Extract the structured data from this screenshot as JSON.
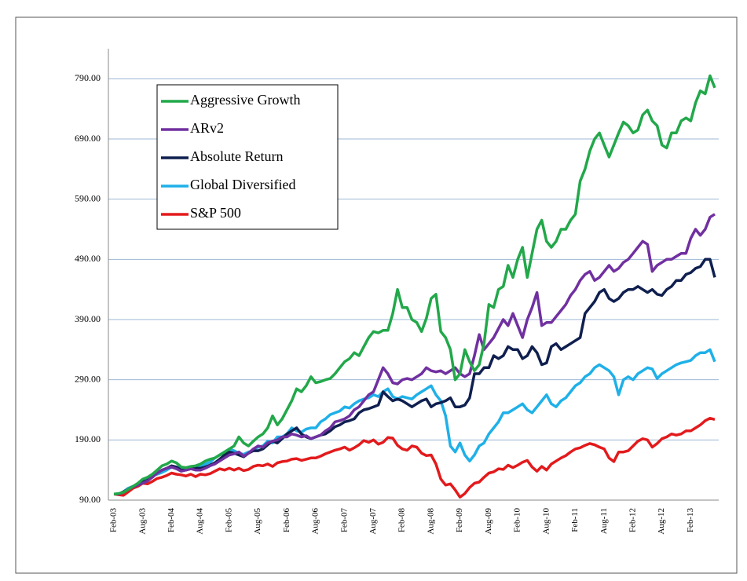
{
  "chart_data": {
    "type": "line",
    "categories": [
      "Feb-03",
      null,
      null,
      null,
      null,
      null,
      "Aug-03",
      null,
      null,
      null,
      null,
      null,
      "Feb-04",
      null,
      null,
      null,
      null,
      null,
      "Aug-04",
      null,
      null,
      null,
      null,
      null,
      "Feb-05",
      null,
      null,
      null,
      null,
      null,
      "Aug-05",
      null,
      null,
      null,
      null,
      null,
      "Feb-06",
      null,
      null,
      null,
      null,
      null,
      "Aug-06",
      null,
      null,
      null,
      null,
      null,
      "Feb-07",
      null,
      null,
      null,
      null,
      null,
      "Aug-07",
      null,
      null,
      null,
      null,
      null,
      "Feb-08",
      null,
      null,
      null,
      null,
      null,
      "Aug-08",
      null,
      null,
      null,
      null,
      null,
      "Feb-09",
      null,
      null,
      null,
      null,
      null,
      "Aug-09",
      null,
      null,
      null,
      null,
      null,
      "Feb-10",
      null,
      null,
      null,
      null,
      null,
      "Aug-10",
      null,
      null,
      null,
      null,
      null,
      "Feb-11",
      null,
      null,
      null,
      null,
      null,
      "Aug-11",
      null,
      null,
      null,
      null,
      null,
      "Feb-12",
      null,
      null,
      null,
      null,
      null,
      "Aug-12",
      null,
      null,
      null,
      null,
      null,
      "Feb-13",
      null,
      null,
      null,
      null,
      null
    ],
    "series": [
      {
        "name": "Aggressive Growth",
        "color": "#22a84a",
        "values": [
          100,
          101,
          103,
          108,
          113,
          118,
          125,
          128,
          133,
          140,
          147,
          150,
          155,
          152,
          145,
          144,
          146,
          147,
          150,
          155,
          158,
          160,
          165,
          170,
          175,
          180,
          195,
          185,
          180,
          188,
          195,
          200,
          210,
          230,
          215,
          225,
          240,
          255,
          275,
          270,
          280,
          295,
          285,
          287,
          290,
          292,
          300,
          310,
          320,
          325,
          335,
          330,
          345,
          360,
          370,
          368,
          372,
          372,
          400,
          440,
          410,
          410,
          390,
          385,
          370,
          392,
          425,
          432,
          370,
          360,
          340,
          290,
          300,
          340,
          320,
          305,
          315,
          350,
          415,
          410,
          440,
          445,
          480,
          460,
          490,
          510,
          460,
          500,
          540,
          555,
          520,
          510,
          520,
          540,
          540,
          555,
          565,
          620,
          640,
          670,
          690,
          700,
          680,
          660,
          680,
          700,
          718,
          712,
          700,
          705,
          730,
          738,
          720,
          712,
          680,
          675,
          700,
          700,
          720,
          725,
          720,
          750,
          770,
          765,
          795,
          775
        ]
      },
      {
        "name": "ARv2",
        "color": "#7030a0",
        "values": [
          100,
          100,
          103,
          108,
          112,
          115,
          118,
          122,
          128,
          135,
          140,
          143,
          145,
          142,
          138,
          140,
          142,
          140,
          140,
          143,
          147,
          150,
          155,
          160,
          165,
          167,
          170,
          163,
          168,
          175,
          180,
          178,
          185,
          188,
          190,
          195,
          195,
          200,
          198,
          195,
          197,
          192,
          195,
          198,
          205,
          210,
          220,
          222,
          225,
          230,
          240,
          245,
          255,
          265,
          270,
          290,
          310,
          300,
          285,
          283,
          290,
          292,
          290,
          295,
          300,
          310,
          305,
          303,
          305,
          300,
          305,
          310,
          300,
          295,
          300,
          330,
          365,
          340,
          350,
          360,
          375,
          390,
          380,
          400,
          380,
          360,
          390,
          410,
          435,
          380,
          385,
          385,
          395,
          405,
          415,
          430,
          440,
          455,
          465,
          470,
          455,
          460,
          470,
          480,
          470,
          475,
          485,
          490,
          500,
          510,
          520,
          515,
          470,
          480,
          485,
          490,
          490,
          495,
          500,
          500,
          525,
          540,
          530,
          540,
          560,
          565
        ]
      },
      {
        "name": "Absolute Return",
        "color": "#0f1f4f",
        "values": [
          100,
          100,
          104,
          108,
          113,
          115,
          120,
          123,
          129,
          135,
          140,
          143,
          147,
          145,
          140,
          140,
          142,
          143,
          143,
          145,
          148,
          152,
          158,
          165,
          170,
          168,
          165,
          162,
          168,
          172,
          172,
          175,
          182,
          188,
          185,
          192,
          200,
          205,
          210,
          200,
          195,
          192,
          195,
          198,
          200,
          205,
          212,
          215,
          220,
          222,
          225,
          235,
          240,
          242,
          245,
          248,
          270,
          262,
          255,
          258,
          255,
          250,
          245,
          250,
          255,
          258,
          245,
          250,
          252,
          255,
          260,
          245,
          245,
          248,
          260,
          300,
          300,
          310,
          310,
          330,
          325,
          330,
          345,
          340,
          340,
          325,
          330,
          345,
          335,
          315,
          318,
          345,
          350,
          340,
          345,
          350,
          355,
          360,
          400,
          410,
          420,
          435,
          440,
          425,
          420,
          425,
          435,
          440,
          440,
          445,
          440,
          435,
          440,
          432,
          430,
          440,
          445,
          455,
          455,
          465,
          468,
          475,
          478,
          490,
          490,
          460
        ]
      },
      {
        "name": "Global Diversified",
        "color": "#1fb0e8",
        "values": [
          100,
          100,
          104,
          110,
          113,
          116,
          120,
          124,
          130,
          133,
          136,
          140,
          145,
          145,
          142,
          141,
          143,
          145,
          145,
          150,
          153,
          160,
          165,
          170,
          175,
          172,
          168,
          166,
          170,
          172,
          178,
          180,
          188,
          185,
          195,
          195,
          200,
          210,
          205,
          203,
          208,
          210,
          210,
          220,
          225,
          232,
          235,
          238,
          245,
          243,
          250,
          255,
          258,
          260,
          265,
          262,
          270,
          275,
          262,
          258,
          262,
          260,
          258,
          265,
          270,
          275,
          280,
          265,
          255,
          230,
          180,
          170,
          185,
          165,
          155,
          165,
          180,
          185,
          200,
          210,
          220,
          235,
          235,
          240,
          245,
          250,
          240,
          235,
          245,
          255,
          265,
          250,
          245,
          255,
          260,
          270,
          280,
          285,
          295,
          300,
          310,
          315,
          310,
          305,
          295,
          265,
          290,
          295,
          290,
          300,
          305,
          310,
          308,
          292,
          300,
          305,
          310,
          315,
          318,
          320,
          322,
          330,
          335,
          335,
          340,
          320
        ]
      },
      {
        "name": "S&P 500",
        "color": "#e31a1c",
        "values": [
          100,
          99,
          98,
          104,
          110,
          113,
          118,
          117,
          121,
          126,
          128,
          131,
          135,
          133,
          132,
          130,
          133,
          129,
          133,
          132,
          134,
          138,
          142,
          140,
          143,
          140,
          143,
          139,
          141,
          146,
          148,
          147,
          150,
          146,
          152,
          154,
          155,
          158,
          159,
          156,
          158,
          160,
          160,
          163,
          167,
          170,
          173,
          175,
          178,
          173,
          177,
          182,
          189,
          186,
          190,
          183,
          186,
          194,
          193,
          181,
          175,
          173,
          180,
          178,
          168,
          164,
          165,
          150,
          125,
          115,
          117,
          107,
          95,
          101,
          111,
          118,
          120,
          128,
          135,
          137,
          142,
          141,
          148,
          144,
          148,
          153,
          156,
          145,
          138,
          146,
          140,
          150,
          155,
          160,
          164,
          170,
          175,
          177,
          181,
          184,
          182,
          178,
          175,
          160,
          154,
          170,
          170,
          172,
          180,
          188,
          192,
          190,
          178,
          184,
          192,
          195,
          200,
          198,
          200,
          205,
          205,
          210,
          215,
          222,
          226,
          224
        ]
      }
    ],
    "ylim": [
      90,
      840
    ],
    "yticks": [
      {
        "value": 90,
        "label": "90.00"
      },
      {
        "value": 190,
        "label": "190.00"
      },
      {
        "value": 290,
        "label": "290.00"
      },
      {
        "value": 390,
        "label": "390.00"
      },
      {
        "value": 490,
        "label": "490.00"
      },
      {
        "value": 590,
        "label": "590.00"
      },
      {
        "value": 690,
        "label": "690.00"
      },
      {
        "value": 790,
        "label": "790.00"
      }
    ],
    "grid": true
  }
}
